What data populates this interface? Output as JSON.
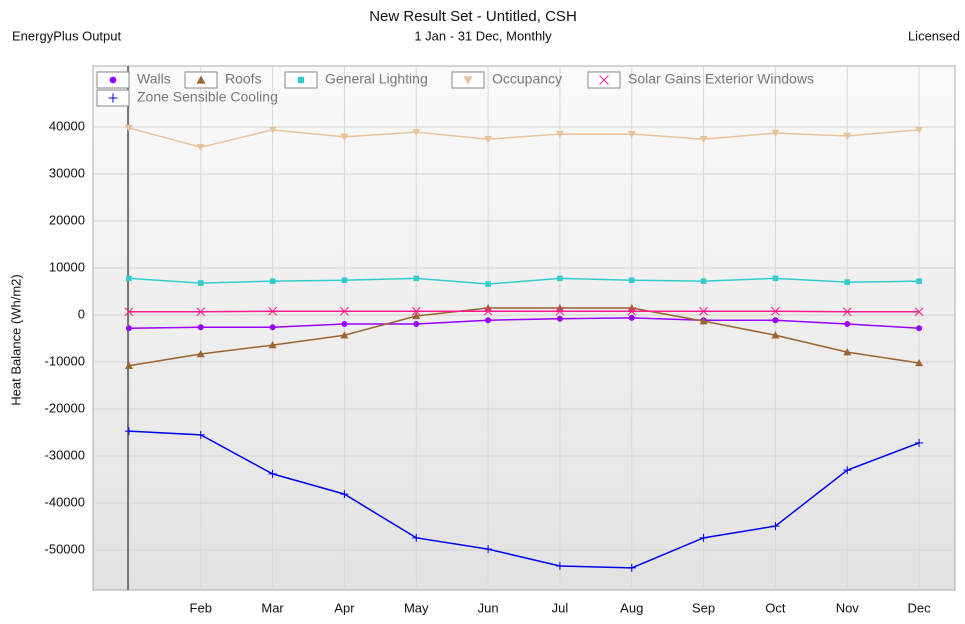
{
  "chart_data": {
    "type": "line",
    "title": "New Result Set - Untitled, CSH",
    "subtitle": "1 Jan - 31 Dec, Monthly",
    "left_note": "EnergyPlus Output",
    "right_note": "Licensed",
    "y_label": "Heat Balance (Wh/m2)",
    "categories": [
      null,
      "Feb",
      "Mar",
      "Apr",
      "May",
      "Jun",
      "Jul",
      "Aug",
      "Sep",
      "Oct",
      "Nov",
      "Dec"
    ],
    "ylim": [
      -58500,
      48300
    ],
    "yticks": [
      -50000,
      -40000,
      -30000,
      -20000,
      -10000,
      0,
      10000,
      20000,
      30000,
      40000
    ],
    "grid": true,
    "series": [
      {
        "name": "Walls",
        "color": "#9a00ff",
        "marker": "circle",
        "values": [
          -2800,
          -2600,
          -2600,
          -1900,
          -1900,
          -1100,
          -800,
          -600,
          -1100,
          -1100,
          -1900,
          -2800
        ]
      },
      {
        "name": "Roofs",
        "color": "#9a6434",
        "marker": "triangle",
        "values": [
          -10800,
          -8300,
          -6400,
          -4300,
          -200,
          1500,
          1500,
          1500,
          -1300,
          -4300,
          -7900,
          -10200
        ]
      },
      {
        "name": "General Lighting",
        "color": "#33cccc",
        "marker": "square",
        "values": [
          7800,
          6800,
          7200,
          7400,
          7800,
          6600,
          7800,
          7400,
          7200,
          7800,
          7000,
          7200
        ]
      },
      {
        "name": "Occupancy",
        "color": "#e8c29a",
        "marker": "triangle-down",
        "values": [
          39800,
          35700,
          39400,
          37900,
          38900,
          37400,
          38500,
          38500,
          37400,
          38700,
          38100,
          39400
        ]
      },
      {
        "name": "Solar Gains Exterior Windows",
        "color": "#ff1a8c",
        "marker": "x",
        "values": [
          700,
          700,
          800,
          800,
          800,
          800,
          800,
          800,
          800,
          800,
          700,
          700
        ]
      },
      {
        "name": "Zone Sensible Cooling",
        "color": "#0000ee",
        "marker": "plus",
        "values": [
          -24700,
          -25500,
          -33800,
          -38100,
          -47400,
          -49800,
          -53400,
          -53800,
          -47400,
          -44900,
          -33000,
          -27200
        ]
      }
    ]
  }
}
